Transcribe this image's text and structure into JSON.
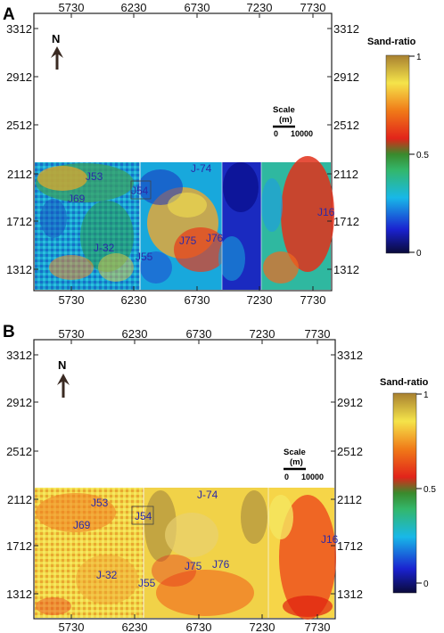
{
  "panels": [
    {
      "letter": "A",
      "x_ticks": [
        "5730",
        "6230",
        "6730",
        "7230",
        "7730"
      ],
      "y_ticks": [
        "3312",
        "2912",
        "2512",
        "2112",
        "1712",
        "1312"
      ],
      "north": "N",
      "scale": {
        "title": "Scale",
        "unit": "(m)",
        "start": "0",
        "end": "10000"
      },
      "colorbar": {
        "title": "Sand-ratio",
        "ticks": [
          "1",
          "0.5",
          "0"
        ]
      },
      "wells": [
        "J53",
        "J69",
        "J54",
        "J-74",
        "J16",
        "J-32",
        "J55",
        "J75",
        "J76"
      ],
      "colors": {
        "low": "#1a0c7a",
        "mid_low": "#14b9d6",
        "mid": "#2e9b3a",
        "mid_high": "#f0e030",
        "high": "#e02a14",
        "top": "#a87a30"
      }
    },
    {
      "letter": "B",
      "x_ticks": [
        "5730",
        "6230",
        "6730",
        "7230",
        "7730"
      ],
      "y_ticks": [
        "3312",
        "2912",
        "2512",
        "2112",
        "1712",
        "1312"
      ],
      "north": "N",
      "scale": {
        "title": "Scale",
        "unit": "(m)",
        "start": "0",
        "end": "10000"
      },
      "colorbar": {
        "title": "Sand-ratio",
        "ticks": [
          "1",
          "0.5",
          "0"
        ]
      },
      "wells": [
        "J53",
        "J69",
        "J54",
        "J-74",
        "J16",
        "J-32",
        "J55",
        "J75",
        "J76"
      ],
      "colors": {
        "low": "#1a0c7a",
        "mid_low": "#14b9d6",
        "mid": "#2e9b3a",
        "mid_high": "#f0e030",
        "high": "#e02a14",
        "top": "#a87a30"
      }
    }
  ]
}
